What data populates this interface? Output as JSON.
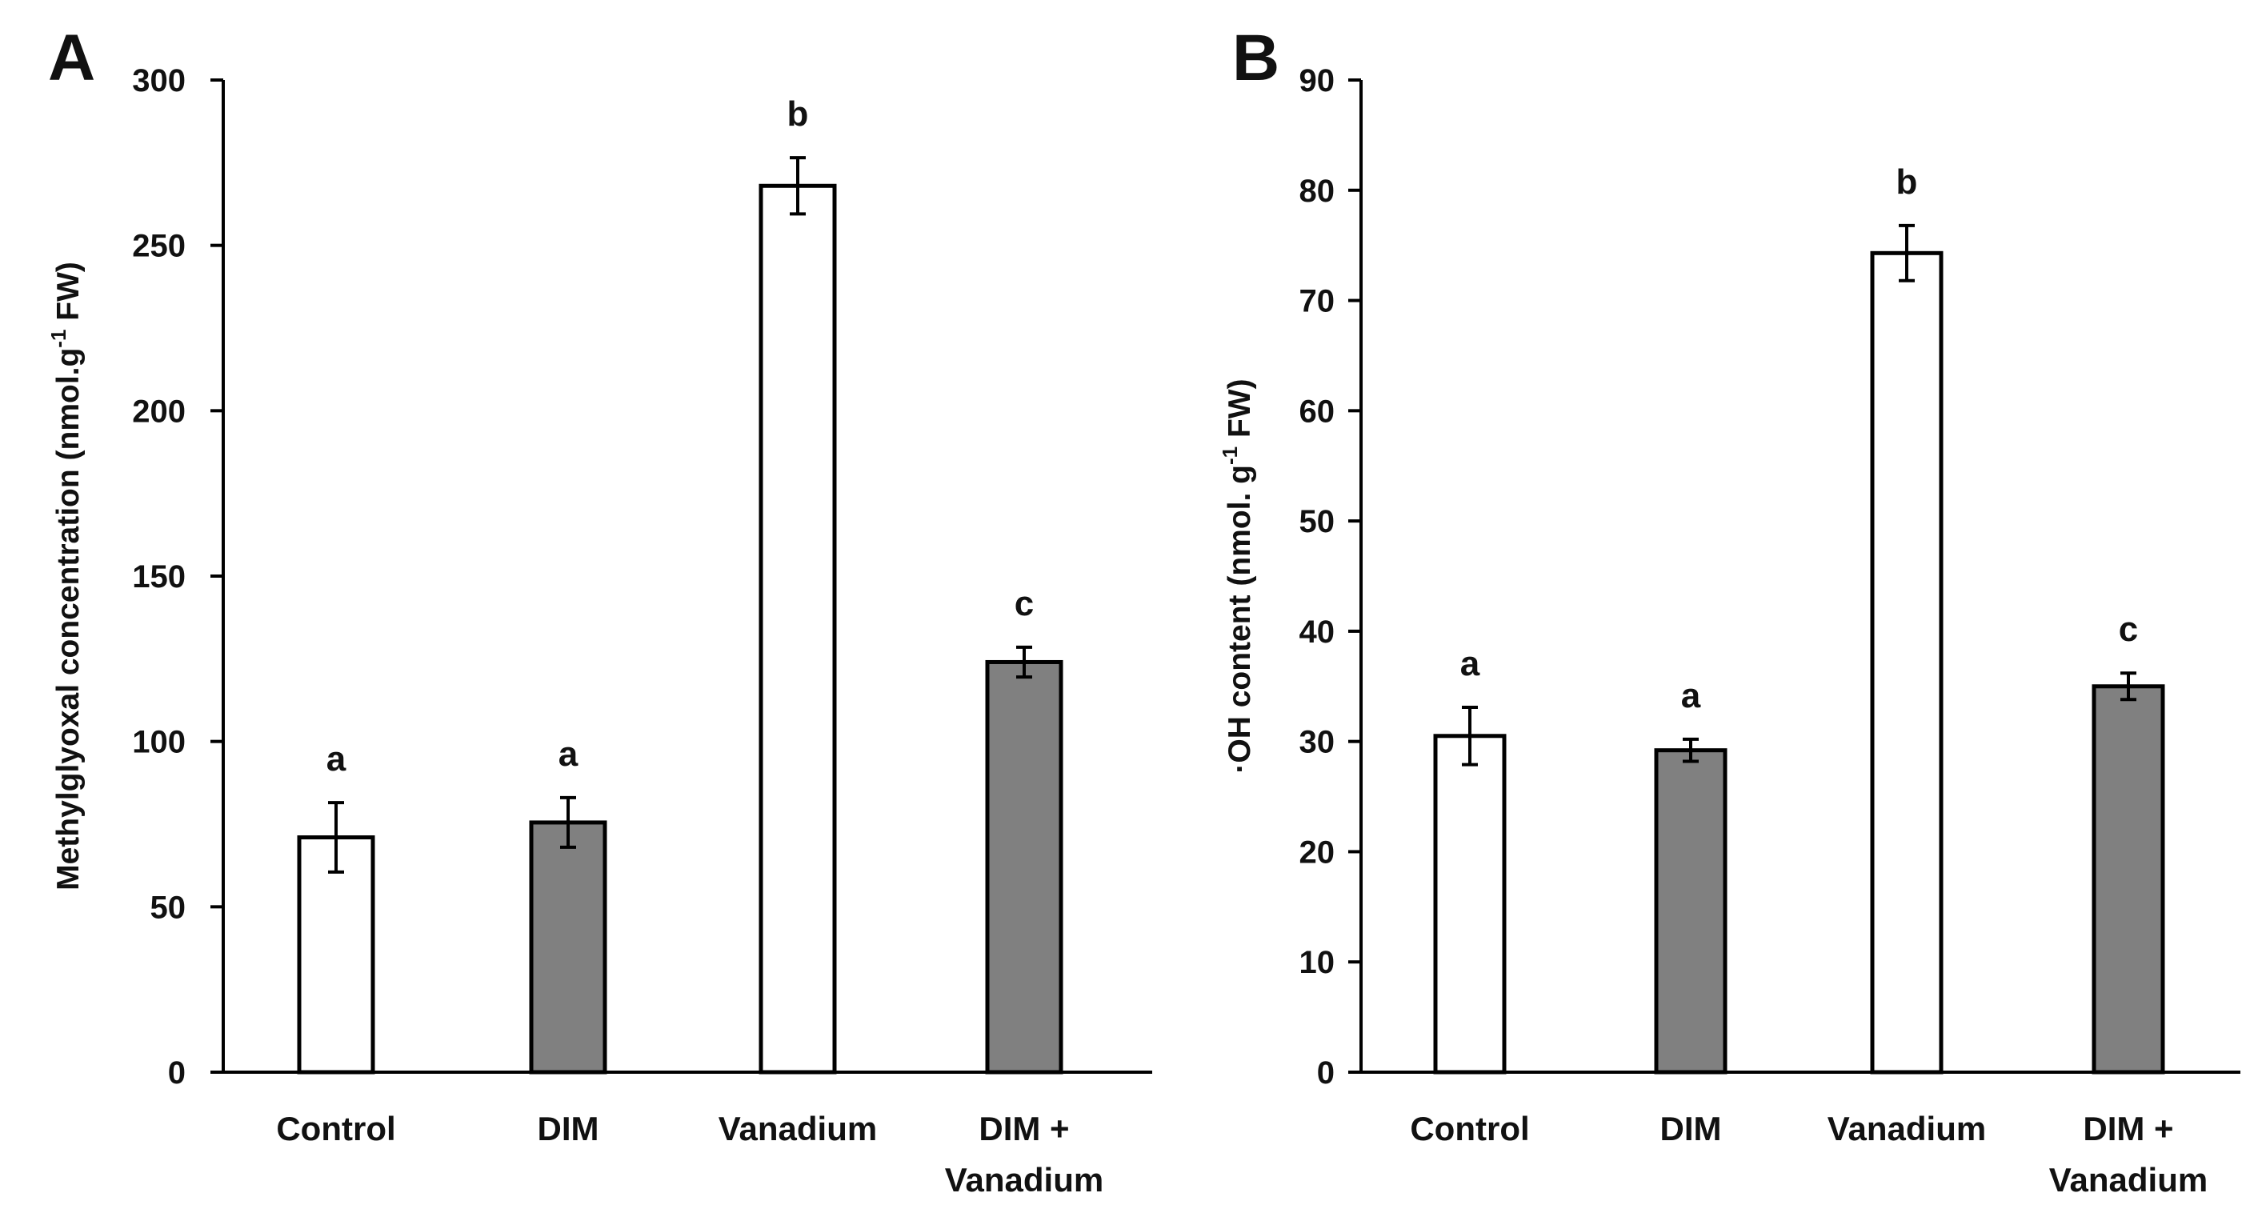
{
  "chart_data": [
    {
      "type": "bar",
      "panel": "A",
      "title": "",
      "xlabel": "",
      "ylabel": "Methylglyoxal concentration (nmol.g",
      "ylabel_sup": "-1",
      "ylabel_tail": " FW)",
      "ylim": [
        0,
        300
      ],
      "yticks": [
        0,
        50,
        100,
        150,
        200,
        250,
        300
      ],
      "categories": [
        [
          "Control"
        ],
        [
          "DIM"
        ],
        [
          "Vanadium"
        ],
        [
          "DIM +",
          "Vanadium"
        ]
      ],
      "values": [
        71,
        75.5,
        268,
        124
      ],
      "errors": [
        10.5,
        7.5,
        8.5,
        4.5
      ],
      "letters": [
        "a",
        "a",
        "b",
        "c"
      ],
      "fills": [
        "#ffffff",
        "#808080",
        "#ffffff",
        "#808080"
      ]
    },
    {
      "type": "bar",
      "panel": "B",
      "title": "",
      "xlabel": "",
      "ylabel_prefix": "·",
      "ylabel": "OH content (nmol. g",
      "ylabel_sup": "-1",
      "ylabel_tail": " FW)",
      "ylim": [
        0,
        90
      ],
      "yticks": [
        0,
        10,
        20,
        30,
        40,
        50,
        60,
        70,
        80,
        90
      ],
      "categories": [
        [
          "Control"
        ],
        [
          "DIM"
        ],
        [
          "Vanadium"
        ],
        [
          "DIM +",
          "Vanadium"
        ]
      ],
      "values": [
        30.5,
        29.2,
        74.3,
        35
      ],
      "errors": [
        2.6,
        1.0,
        2.5,
        1.2
      ],
      "letters": [
        "a",
        "a",
        "b",
        "c"
      ],
      "fills": [
        "#ffffff",
        "#808080",
        "#ffffff",
        "#808080"
      ]
    }
  ]
}
